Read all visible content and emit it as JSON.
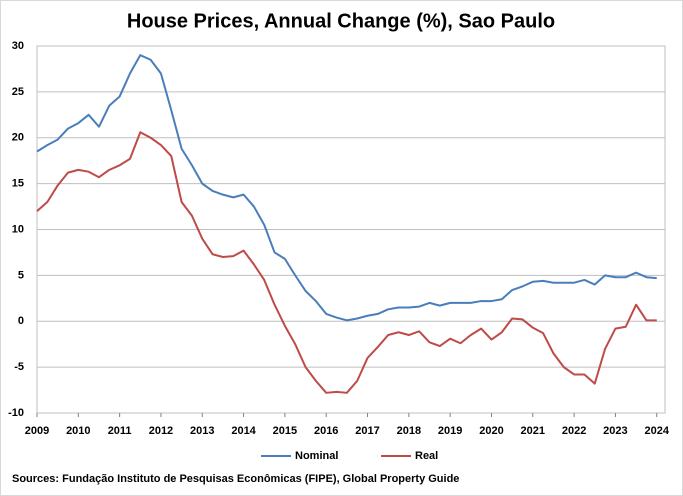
{
  "chart_data": {
    "type": "line",
    "title": "House Prices, Annual Change (%), Sao Paulo",
    "source": "Sources: Fundação Instituto de Pesquisas Econômicas (FIPE), Global Property Guide",
    "x": [
      2009,
      2009.25,
      2009.5,
      2009.75,
      2010,
      2010.25,
      2010.5,
      2010.75,
      2011,
      2011.25,
      2011.5,
      2011.75,
      2012,
      2012.25,
      2012.5,
      2012.75,
      2013,
      2013.25,
      2013.5,
      2013.75,
      2014,
      2014.25,
      2014.5,
      2014.75,
      2015,
      2015.25,
      2015.5,
      2015.75,
      2016,
      2016.25,
      2016.5,
      2016.75,
      2017,
      2017.25,
      2017.5,
      2017.75,
      2018,
      2018.25,
      2018.5,
      2018.75,
      2019,
      2019.25,
      2019.5,
      2019.75,
      2020,
      2020.25,
      2020.5,
      2020.75,
      2021,
      2021.25,
      2021.5,
      2021.75,
      2022,
      2022.25,
      2022.5,
      2022.75,
      2023,
      2023.25,
      2023.5,
      2023.75,
      2024
    ],
    "series": [
      {
        "name": "Nominal",
        "color": "#4a7ebb",
        "values": [
          18.5,
          19.2,
          19.8,
          21.0,
          21.6,
          22.5,
          21.2,
          23.5,
          24.5,
          27.0,
          29.0,
          28.5,
          27.0,
          23.0,
          18.8,
          17.0,
          15.0,
          14.2,
          13.8,
          13.5,
          13.8,
          12.5,
          10.5,
          7.5,
          6.8,
          5.0,
          3.3,
          2.2,
          0.8,
          0.4,
          0.1,
          0.3,
          0.6,
          0.8,
          1.3,
          1.5,
          1.5,
          1.6,
          2.0,
          1.7,
          2.0,
          2.0,
          2.0,
          2.2,
          2.2,
          2.4,
          3.4,
          3.8,
          4.3,
          4.4,
          4.2,
          4.2,
          4.2,
          4.5,
          4.0,
          5.0,
          4.8,
          4.8,
          5.3,
          4.8,
          4.7
        ]
      },
      {
        "name": "Real",
        "color": "#be4b48",
        "values": [
          12.0,
          13.0,
          14.8,
          16.2,
          16.5,
          16.3,
          15.7,
          16.5,
          17.0,
          17.7,
          20.6,
          20.0,
          19.2,
          18.0,
          13.0,
          11.5,
          9.0,
          7.3,
          7.0,
          7.1,
          7.7,
          6.2,
          4.5,
          1.8,
          -0.5,
          -2.5,
          -5.0,
          -6.5,
          -7.8,
          -7.7,
          -7.8,
          -6.5,
          -4.0,
          -2.8,
          -1.5,
          -1.2,
          -1.5,
          -1.1,
          -2.3,
          -2.7,
          -1.9,
          -2.4,
          -1.5,
          -0.8,
          -2.0,
          -1.2,
          0.3,
          0.2,
          -0.7,
          -1.3,
          -3.5,
          -5.0,
          -5.8,
          -5.8,
          -6.8,
          -3.0,
          -0.8,
          -0.6,
          1.8,
          0.1,
          0.1
        ]
      }
    ],
    "xlim": [
      2009,
      2024.2
    ],
    "xticks": [
      2009,
      2010,
      2011,
      2012,
      2013,
      2014,
      2015,
      2016,
      2017,
      2018,
      2019,
      2020,
      2021,
      2022,
      2023,
      2024
    ],
    "ylim": [
      -10,
      30
    ],
    "yticks": [
      -10,
      -5,
      0,
      5,
      10,
      15,
      20,
      25,
      30
    ],
    "grid": true,
    "legend": "bottom"
  }
}
